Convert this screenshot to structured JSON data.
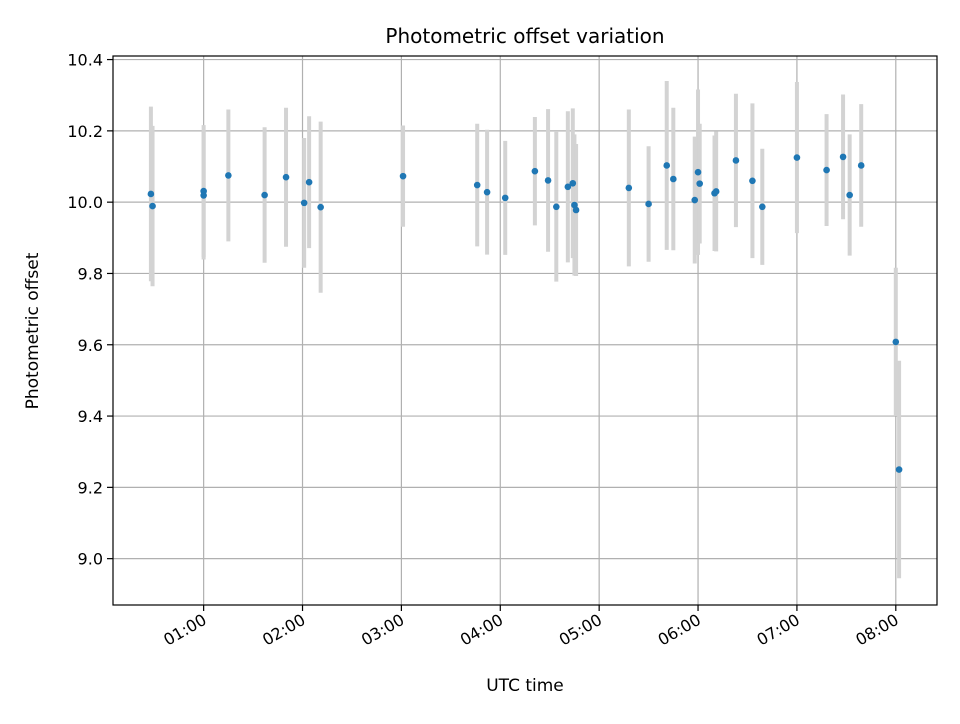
{
  "chart_data": {
    "type": "scatter",
    "title": "Photometric offset variation",
    "xlabel": "UTC time",
    "ylabel": "Photometric offset",
    "xlim": [
      "00:05",
      "08:25"
    ],
    "ylim": [
      8.87,
      10.41
    ],
    "grid": true,
    "x_ticks": [
      "01:00",
      "02:00",
      "03:00",
      "04:00",
      "05:00",
      "06:00",
      "07:00",
      "08:00"
    ],
    "y_ticks": [
      "9.0",
      "9.2",
      "9.4",
      "9.6",
      "9.8",
      "10.0",
      "10.2",
      "10.4"
    ],
    "colors": {
      "points": "#1f77b4",
      "errorbars": "#d3d3d3",
      "grid": "#b0b0b0"
    },
    "series": [
      {
        "points": [
          {
            "x": "00:28",
            "y": 10.023,
            "yerr": 0.245
          },
          {
            "x": "00:29",
            "y": 9.989,
            "yerr": 0.225
          },
          {
            "x": "01:00",
            "y": 10.031,
            "yerr": 0.185
          },
          {
            "x": "01:00",
            "y": 10.019,
            "yerr": 0.18
          },
          {
            "x": "01:15",
            "y": 10.075,
            "yerr": 0.185
          },
          {
            "x": "01:37",
            "y": 10.02,
            "yerr": 0.19
          },
          {
            "x": "01:50",
            "y": 10.07,
            "yerr": 0.195
          },
          {
            "x": "02:01",
            "y": 9.998,
            "yerr": 0.182
          },
          {
            "x": "02:04",
            "y": 10.056,
            "yerr": 0.185
          },
          {
            "x": "02:11",
            "y": 9.986,
            "yerr": 0.24
          },
          {
            "x": "03:01",
            "y": 10.073,
            "yerr": 0.142
          },
          {
            "x": "03:46",
            "y": 10.048,
            "yerr": 0.172
          },
          {
            "x": "03:52",
            "y": 10.028,
            "yerr": 0.175
          },
          {
            "x": "04:03",
            "y": 10.012,
            "yerr": 0.16
          },
          {
            "x": "04:21",
            "y": 10.087,
            "yerr": 0.152
          },
          {
            "x": "04:29",
            "y": 10.061,
            "yerr": 0.2
          },
          {
            "x": "04:34",
            "y": 9.987,
            "yerr": 0.21
          },
          {
            "x": "04:41",
            "y": 10.043,
            "yerr": 0.212
          },
          {
            "x": "04:44",
            "y": 10.053,
            "yerr": 0.21
          },
          {
            "x": "04:45",
            "y": 9.992,
            "yerr": 0.198
          },
          {
            "x": "04:46",
            "y": 9.978,
            "yerr": 0.185
          },
          {
            "x": "05:18",
            "y": 10.04,
            "yerr": 0.22
          },
          {
            "x": "05:30",
            "y": 9.995,
            "yerr": 0.162
          },
          {
            "x": "05:41",
            "y": 10.103,
            "yerr": 0.237
          },
          {
            "x": "05:45",
            "y": 10.065,
            "yerr": 0.2
          },
          {
            "x": "05:58",
            "y": 10.006,
            "yerr": 0.178
          },
          {
            "x": "06:00",
            "y": 10.084,
            "yerr": 0.232
          },
          {
            "x": "06:01",
            "y": 10.052,
            "yerr": 0.168
          },
          {
            "x": "06:10",
            "y": 10.025,
            "yerr": 0.162
          },
          {
            "x": "06:11",
            "y": 10.03,
            "yerr": 0.168
          },
          {
            "x": "06:23",
            "y": 10.117,
            "yerr": 0.187
          },
          {
            "x": "06:33",
            "y": 10.06,
            "yerr": 0.217
          },
          {
            "x": "06:39",
            "y": 9.987,
            "yerr": 0.163
          },
          {
            "x": "07:00",
            "y": 10.125,
            "yerr": 0.212
          },
          {
            "x": "07:18",
            "y": 10.09,
            "yerr": 0.157
          },
          {
            "x": "07:28",
            "y": 10.127,
            "yerr": 0.175
          },
          {
            "x": "07:32",
            "y": 10.02,
            "yerr": 0.17
          },
          {
            "x": "07:39",
            "y": 10.103,
            "yerr": 0.172
          },
          {
            "x": "08:00",
            "y": 9.608,
            "yerr": 0.208
          },
          {
            "x": "08:02",
            "y": 9.25,
            "yerr": 0.305
          }
        ]
      }
    ]
  }
}
